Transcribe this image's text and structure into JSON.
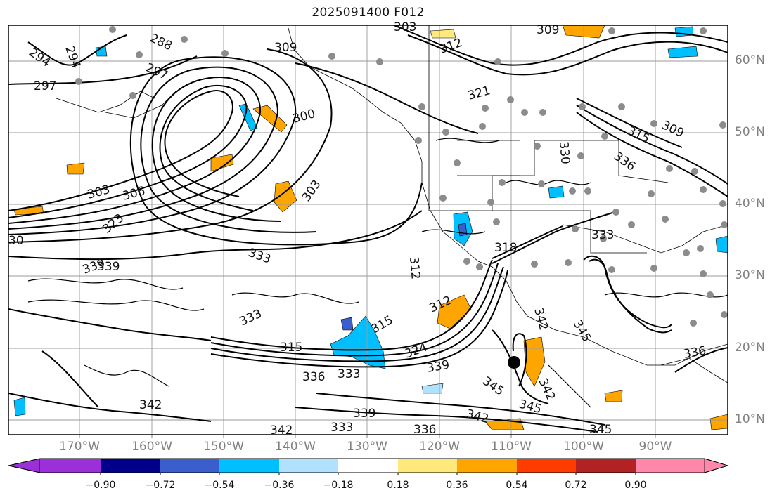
{
  "title": "2025091400 F012",
  "lon_labels": [
    "170°W",
    "160°W",
    "150°W",
    "140°W",
    "130°W",
    "120°W",
    "110°W",
    "100°W",
    "90°W"
  ],
  "lat_labels": [
    "60°N",
    "50°N",
    "40°N",
    "30°N",
    "20°N",
    "10°N"
  ],
  "contour_labels": [
    "294",
    "294",
    "288",
    "297",
    "297",
    "309",
    "303",
    "309",
    "312",
    "321",
    "300",
    "303",
    "303",
    "306",
    "315",
    "309",
    "330",
    "336",
    "323",
    "333",
    "30",
    "333",
    "318",
    "339",
    "312",
    "312",
    "342",
    "315",
    "315",
    "324",
    "336",
    "333",
    "339",
    "345",
    "342",
    "345",
    "342",
    "339",
    "333",
    "336",
    "342",
    "345",
    "339",
    "333",
    "342",
    "345",
    "336"
  ],
  "colorbar": {
    "ticks": [
      "−0.90",
      "−0.72",
      "−0.54",
      "−0.36",
      "−0.18",
      "0.18",
      "0.36",
      "0.54",
      "0.72",
      "0.90"
    ],
    "colors": [
      "#9b30d9",
      "#00008b",
      "#3a5fcd",
      "#00bfff",
      "#b0e2ff",
      "#ffffff",
      "#ffe87c",
      "#ffa500",
      "#ff3c00",
      "#b22222",
      "#ff88aa"
    ]
  }
}
